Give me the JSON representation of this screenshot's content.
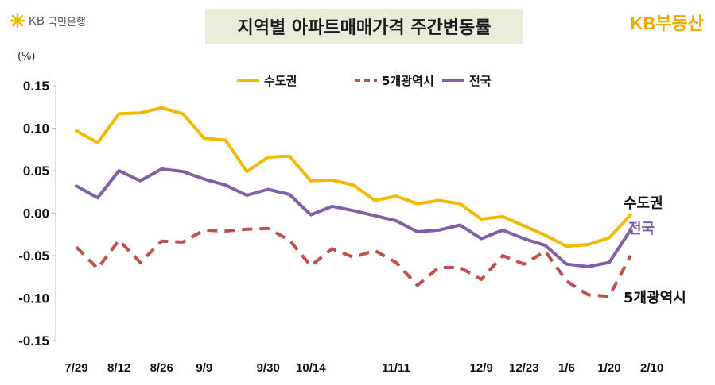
{
  "header": {
    "bank_logo_kb": "KB",
    "bank_logo_name": "국민은행",
    "title": "지역별 아파트매매가격 주간변동률",
    "brand_logo": "KB부동산"
  },
  "chart_data": {
    "type": "line",
    "unit": "(%)",
    "ylim": [
      -0.15,
      0.15
    ],
    "yticks": [
      "0.15",
      "0.10",
      "0.05",
      "0.00",
      "-0.05",
      "-0.10",
      "-0.15"
    ],
    "ytick_values": [
      0.15,
      0.1,
      0.05,
      0.0,
      -0.05,
      -0.1,
      -0.15
    ],
    "xtick_labels": [
      {
        "index": 0,
        "label": "7/29"
      },
      {
        "index": 2,
        "label": "8/12"
      },
      {
        "index": 4,
        "label": "8/26"
      },
      {
        "index": 6,
        "label": "9/9"
      },
      {
        "index": 9,
        "label": "9/30"
      },
      {
        "index": 11,
        "label": "10/14"
      },
      {
        "index": 15,
        "label": "11/11"
      },
      {
        "index": 19,
        "label": "12/9"
      },
      {
        "index": 21,
        "label": "12/23"
      },
      {
        "index": 23,
        "label": "1/6"
      },
      {
        "index": 25,
        "label": "1/20"
      },
      {
        "index": 27,
        "label": "2/10"
      }
    ],
    "legend": "top-center",
    "grid": false,
    "series": [
      {
        "name": "수도권",
        "color": "#f5b800",
        "style": "solid",
        "values": [
          0.097,
          0.083,
          0.117,
          0.118,
          0.124,
          0.117,
          0.088,
          0.086,
          0.049,
          0.066,
          0.067,
          0.038,
          0.039,
          0.033,
          0.015,
          0.02,
          0.011,
          0.015,
          0.011,
          -0.007,
          -0.004,
          -0.015,
          -0.026,
          -0.039,
          -0.037,
          -0.029,
          -0.002
        ],
        "end_label": "수도권"
      },
      {
        "name": "5개광역시",
        "color": "#c0504d",
        "style": "dashed",
        "values": [
          -0.04,
          -0.065,
          -0.032,
          -0.058,
          -0.033,
          -0.034,
          -0.02,
          -0.021,
          -0.019,
          -0.018,
          -0.032,
          -0.062,
          -0.042,
          -0.052,
          -0.044,
          -0.058,
          -0.085,
          -0.064,
          -0.064,
          -0.078,
          -0.05,
          -0.06,
          -0.045,
          -0.08,
          -0.096,
          -0.098,
          -0.05
        ],
        "end_label": "5개광역시"
      },
      {
        "name": "전국",
        "color": "#7f5fa6",
        "style": "solid",
        "values": [
          0.032,
          0.018,
          0.05,
          0.038,
          0.052,
          0.049,
          0.04,
          0.033,
          0.021,
          0.028,
          0.022,
          -0.002,
          0.008,
          0.003,
          -0.003,
          -0.009,
          -0.022,
          -0.02,
          -0.014,
          -0.03,
          -0.02,
          -0.03,
          -0.038,
          -0.06,
          -0.063,
          -0.058,
          -0.02
        ],
        "end_label": "전국"
      }
    ]
  }
}
